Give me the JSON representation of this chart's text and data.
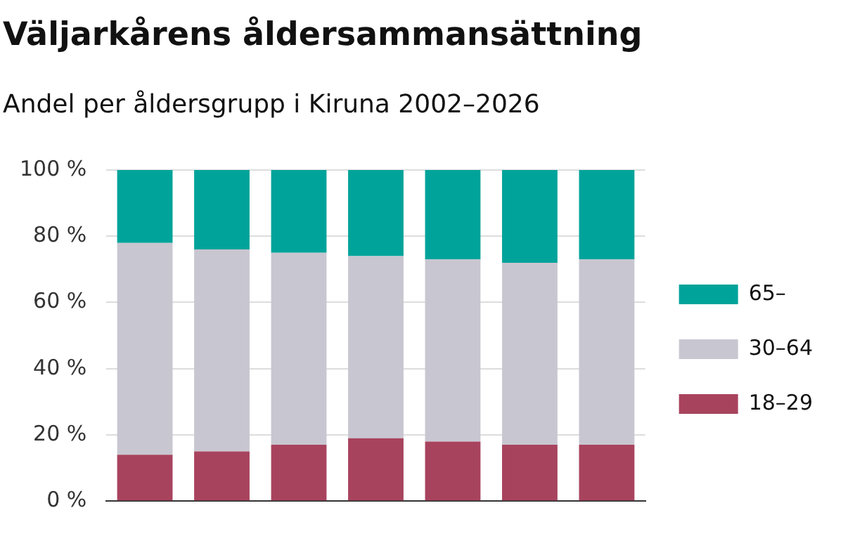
{
  "chart_data": {
    "type": "bar",
    "title": "Väljarkårens åldersammansättning",
    "subtitle": "Andel per åldersgrupp i Kiruna  2002–2026",
    "categories": [
      null,
      null,
      null,
      null,
      null,
      null,
      null
    ],
    "stacked": true,
    "series": [
      {
        "name": "18–29",
        "color": "#a8435e",
        "values": [
          14,
          15,
          17,
          19,
          18,
          17,
          17
        ]
      },
      {
        "name": "30–64",
        "color": "#c8c6d0",
        "values": [
          64,
          61,
          58,
          55,
          55,
          55,
          56
        ]
      },
      {
        "name": "65–",
        "color": "#00a39a",
        "values": [
          22,
          24,
          25,
          26,
          27,
          28,
          27
        ]
      }
    ],
    "ylim": [
      0,
      100
    ],
    "yticks": [
      {
        "value": 0,
        "label": "0 %"
      },
      {
        "value": 20,
        "label": "20 %"
      },
      {
        "value": 40,
        "label": "40 %"
      },
      {
        "value": 60,
        "label": "60 %"
      },
      {
        "value": 80,
        "label": "80 %"
      },
      {
        "value": 100,
        "label": "100 %"
      }
    ],
    "grid": "y",
    "legend": "right"
  }
}
